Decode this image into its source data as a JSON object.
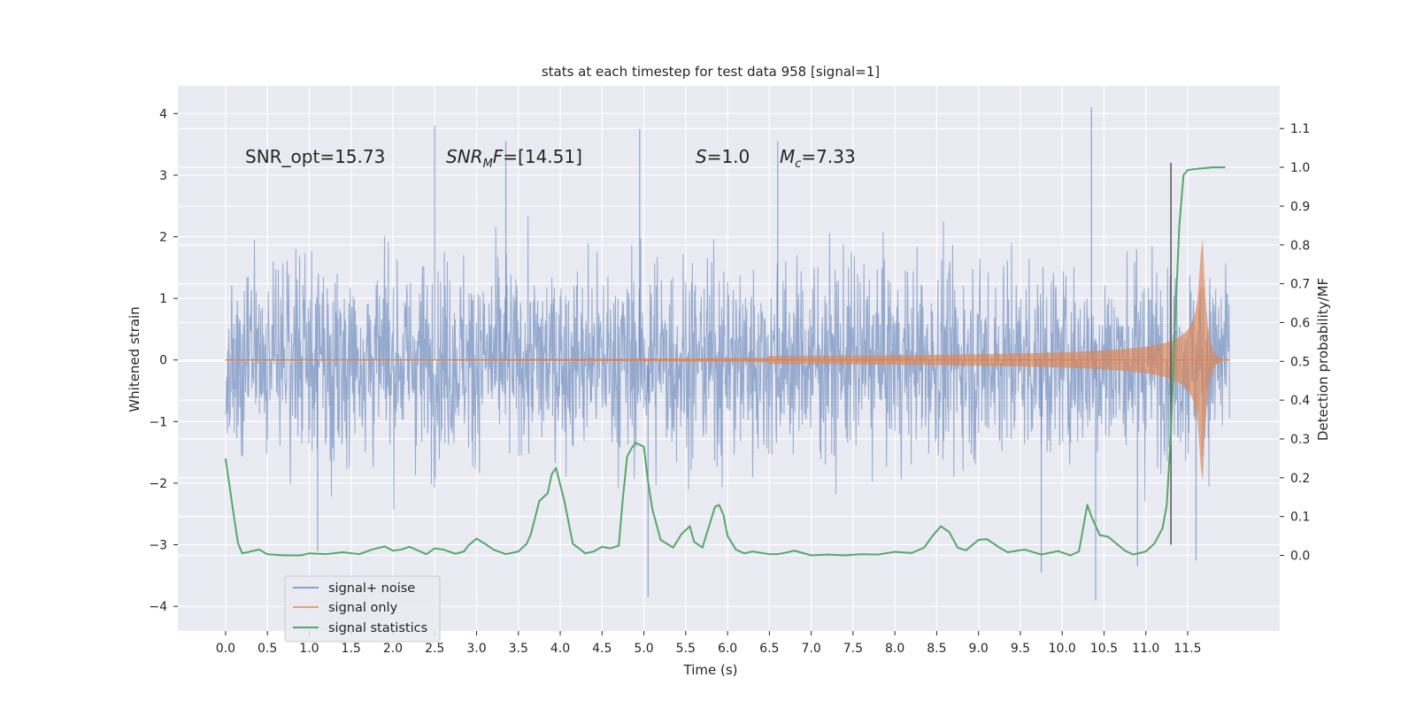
{
  "chart_data": {
    "type": "line",
    "title": "stats at each timestep for test data 958 [signal=1]",
    "xlabel": "Time (s)",
    "ylabel": "Whitened strain",
    "y2label": "Detection probability/MF",
    "xlim": [
      -0.57,
      12.6
    ],
    "ylim": [
      -4.4,
      4.45
    ],
    "y2lim": [
      -0.195,
      1.21
    ],
    "x_ticks": [
      0.0,
      0.5,
      1.0,
      1.5,
      2.0,
      2.5,
      3.0,
      3.5,
      4.0,
      4.5,
      5.0,
      5.5,
      6.0,
      6.5,
      7.0,
      7.5,
      8.0,
      8.5,
      9.0,
      9.5,
      10.0,
      10.5,
      11.0,
      11.5
    ],
    "x_tick_labels": [
      "0.0",
      "0.5",
      "1.0",
      "1.5",
      "2.0",
      "2.5",
      "3.0",
      "3.5",
      "4.0",
      "4.5",
      "5.0",
      "5.5",
      "6.0",
      "6.5",
      "7.0",
      "7.5",
      "8.0",
      "8.5",
      "9.0",
      "9.5",
      "10.0",
      "10.5",
      "11.0",
      "11.5"
    ],
    "y_ticks": [
      -4,
      -3,
      -2,
      -1,
      0,
      1,
      2,
      3,
      4
    ],
    "y_tick_labels": [
      "−4",
      "−3",
      "−2",
      "−1",
      "0",
      "1",
      "2",
      "3",
      "4"
    ],
    "y2_ticks": [
      0.0,
      0.1,
      0.2,
      0.3,
      0.4,
      0.5,
      0.6,
      0.7,
      0.8,
      0.9,
      1.0,
      1.1
    ],
    "y2_tick_labels": [
      "0.0",
      "0.1",
      "0.2",
      "0.3",
      "0.4",
      "0.5",
      "0.6",
      "0.7",
      "0.8",
      "0.9",
      "1.0",
      "1.1"
    ],
    "grid": true,
    "legend_position": "lower-left",
    "series": [
      {
        "name": "signal+ noise",
        "color": "#4c72b0",
        "kind": "noisy strain, approx. ±2.6 envelope with peaks to ±4",
        "t_range": [
          0.0,
          12.0
        ],
        "sample_peaks": [
          {
            "t": 1.1,
            "v": -3.1
          },
          {
            "t": 2.5,
            "v": 3.8
          },
          {
            "t": 3.35,
            "v": 3.55
          },
          {
            "t": 4.95,
            "v": 3.75
          },
          {
            "t": 5.05,
            "v": -3.85
          },
          {
            "t": 6.6,
            "v": 3.55
          },
          {
            "t": 9.75,
            "v": -3.45
          },
          {
            "t": 10.35,
            "v": 4.1
          },
          {
            "t": 10.4,
            "v": -3.9
          },
          {
            "t": 10.9,
            "v": -3.35
          },
          {
            "t": 11.6,
            "v": -3.25
          }
        ]
      },
      {
        "name": "signal only",
        "color": "#dd8452",
        "kind": "chirp, amplitude grows toward merger then rings down",
        "t_range": [
          0.0,
          12.0
        ],
        "merger_time": 11.67,
        "peak_amplitude": 2.4
      },
      {
        "name": "signal statistics",
        "color": "#55a868",
        "axis": "right",
        "x": [
          0.0,
          0.1,
          0.15,
          0.2,
          0.3,
          0.4,
          0.5,
          0.7,
          0.9,
          1.0,
          1.2,
          1.4,
          1.6,
          1.75,
          1.9,
          2.0,
          2.1,
          2.2,
          2.4,
          2.5,
          2.6,
          2.75,
          2.85,
          2.9,
          3.0,
          3.1,
          3.2,
          3.35,
          3.5,
          3.6,
          3.65,
          3.75,
          3.85,
          3.9,
          3.95,
          4.05,
          4.15,
          4.3,
          4.4,
          4.5,
          4.6,
          4.7,
          4.75,
          4.8,
          4.85,
          4.9,
          5.0,
          5.05,
          5.1,
          5.2,
          5.35,
          5.45,
          5.55,
          5.6,
          5.7,
          5.75,
          5.85,
          5.9,
          5.95,
          6.0,
          6.1,
          6.2,
          6.3,
          6.5,
          6.6,
          6.7,
          6.8,
          7.0,
          7.2,
          7.4,
          7.6,
          7.8,
          8.0,
          8.2,
          8.35,
          8.45,
          8.55,
          8.65,
          8.75,
          8.85,
          9.0,
          9.1,
          9.25,
          9.35,
          9.55,
          9.75,
          9.95,
          10.1,
          10.2,
          10.3,
          10.35,
          10.45,
          10.55,
          10.75,
          10.85,
          11.0,
          11.1,
          11.2,
          11.25,
          11.3,
          11.35,
          11.4,
          11.45,
          11.5,
          11.6,
          11.8,
          11.95
        ],
        "y": [
          0.25,
          0.1,
          0.03,
          0.005,
          0.01,
          0.015,
          0.003,
          0.0,
          0.0,
          0.005,
          0.003,
          0.008,
          0.003,
          0.015,
          0.023,
          0.012,
          0.015,
          0.022,
          0.003,
          0.018,
          0.015,
          0.004,
          0.01,
          0.025,
          0.043,
          0.03,
          0.015,
          0.003,
          0.01,
          0.03,
          0.055,
          0.14,
          0.16,
          0.21,
          0.225,
          0.14,
          0.03,
          0.005,
          0.01,
          0.022,
          0.018,
          0.025,
          0.15,
          0.255,
          0.275,
          0.29,
          0.28,
          0.19,
          0.12,
          0.04,
          0.02,
          0.055,
          0.075,
          0.035,
          0.02,
          0.055,
          0.125,
          0.13,
          0.105,
          0.05,
          0.015,
          0.005,
          0.01,
          0.003,
          0.003,
          0.007,
          0.012,
          0.0,
          0.002,
          0.0,
          0.003,
          0.002,
          0.009,
          0.006,
          0.02,
          0.05,
          0.075,
          0.06,
          0.02,
          0.013,
          0.04,
          0.042,
          0.02,
          0.008,
          0.015,
          0.002,
          0.011,
          0.0,
          0.01,
          0.13,
          0.1,
          0.052,
          0.048,
          0.012,
          0.002,
          0.01,
          0.03,
          0.07,
          0.13,
          0.32,
          0.6,
          0.85,
          0.98,
          0.993,
          0.996,
          1.0,
          1.0
        ]
      }
    ],
    "vline": {
      "x": 11.3,
      "y_top": 3.2,
      "y_bottom": -3.0,
      "color": "#555555"
    },
    "annotations": [
      {
        "id": "snr_opt",
        "text": "SNR_opt=15.73",
        "x": 0.2,
        "y": 3.2
      },
      {
        "id": "snr_mf",
        "text": "SNR_MF=[14.51]",
        "x": 2.6,
        "y": 3.2
      },
      {
        "id": "s",
        "text": "S=1.0",
        "x": 5.6,
        "y": 3.2
      },
      {
        "id": "mc",
        "text": "M_c=7.33",
        "x": 6.6,
        "y": 3.2
      }
    ],
    "annotation_parts": {
      "snr_opt": "SNR_opt=15.73",
      "snr_mf_main": "SNR",
      "snr_mf_sub": "M",
      "snr_mf_f": "F",
      "snr_mf_val": "=[14.51]",
      "s_var": "S",
      "s_val": "=1.0",
      "mc_var": "M",
      "mc_sub": "c",
      "mc_val": "=7.33"
    }
  }
}
